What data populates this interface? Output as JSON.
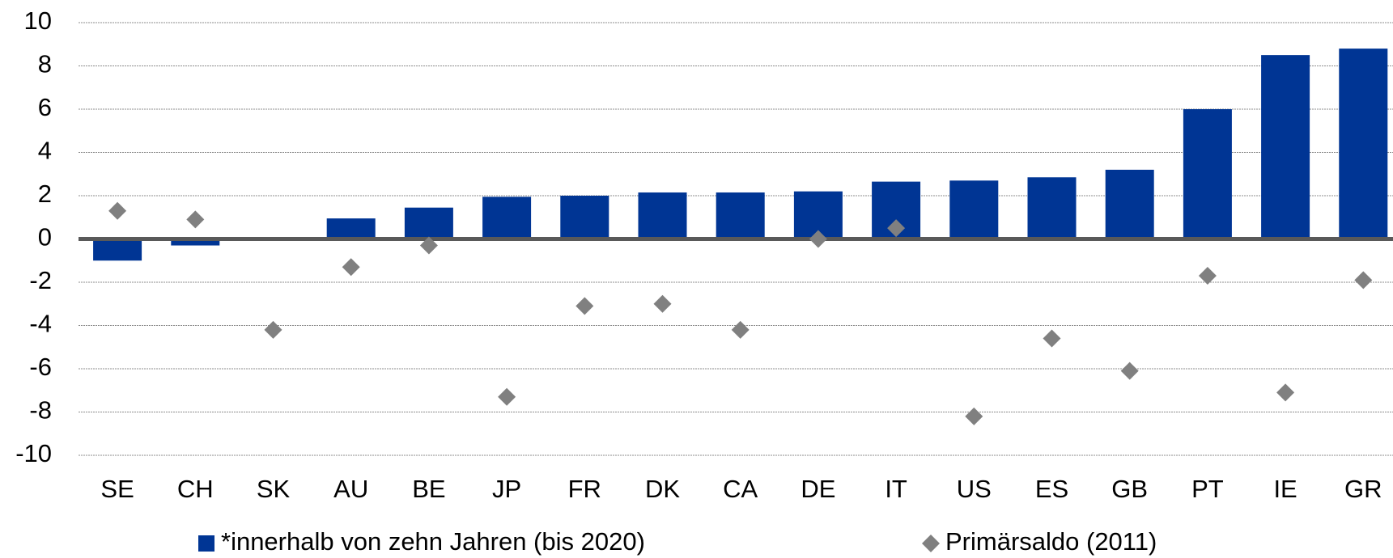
{
  "chart_data": {
    "type": "bar",
    "categories": [
      "SE",
      "CH",
      "SK",
      "AU",
      "BE",
      "JP",
      "FR",
      "DK",
      "CA",
      "DE",
      "IT",
      "US",
      "ES",
      "GB",
      "PT",
      "IE",
      "GR"
    ],
    "series": [
      {
        "name": "*innerhalb von zehn Jahren (bis 2020)",
        "color": "#003594",
        "type": "bar",
        "values": [
          -1.0,
          -0.3,
          0.05,
          0.95,
          1.45,
          1.95,
          2.0,
          2.15,
          2.15,
          2.2,
          2.65,
          2.7,
          2.85,
          3.2,
          6.0,
          8.5,
          8.8
        ]
      },
      {
        "name": "Primärsaldo (2011)",
        "color": "#808080",
        "type": "scatter",
        "values": [
          1.3,
          0.9,
          -4.2,
          -1.3,
          -0.3,
          -7.3,
          -3.1,
          -3.0,
          -4.2,
          0.0,
          0.5,
          -8.2,
          -4.6,
          -6.1,
          -1.7,
          -7.1,
          -1.9
        ]
      }
    ],
    "ylim": [
      -10,
      10
    ],
    "yticks": [
      10,
      8,
      6,
      4,
      2,
      0,
      -2,
      -4,
      -6,
      -8,
      -10
    ],
    "grid": true,
    "legend": "bottom"
  }
}
